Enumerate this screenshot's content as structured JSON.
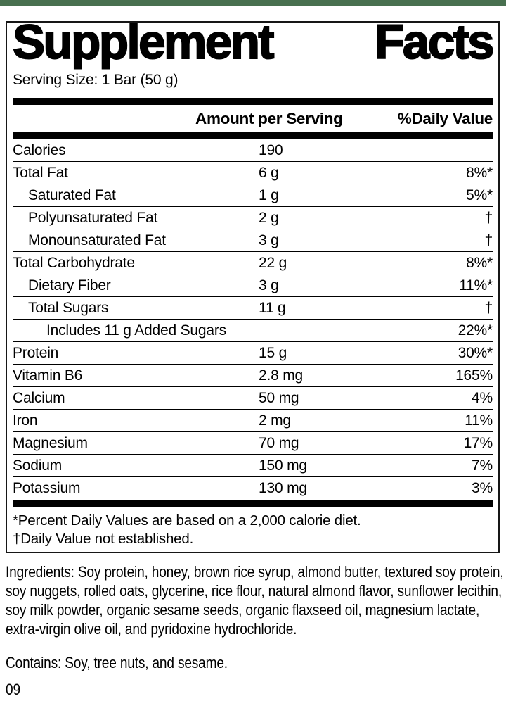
{
  "colors": {
    "accent_green": "#48704f",
    "text": "#000000"
  },
  "title": "Supplement Facts",
  "title_words": [
    "Supplement",
    "Facts"
  ],
  "serving_size": "Serving Size: 1 Bar (50 g)",
  "table": {
    "headers": {
      "amount": "Amount per Serving",
      "daily_value": "%Daily Value"
    },
    "rows": [
      {
        "label": "Calories",
        "amount": "190",
        "dv": "",
        "indent": 0
      },
      {
        "label": "Total Fat",
        "amount": "6 g",
        "dv": "8%*",
        "indent": 0
      },
      {
        "label": "Saturated Fat",
        "amount": "1 g",
        "dv": "5%*",
        "indent": 1
      },
      {
        "label": "Polyunsaturated Fat",
        "amount": "2 g",
        "dv": "†",
        "indent": 1
      },
      {
        "label": "Monounsaturated Fat",
        "amount": "3 g",
        "dv": "†",
        "indent": 1
      },
      {
        "label": "Total Carbohydrate",
        "amount": "22 g",
        "dv": "8%*",
        "indent": 0
      },
      {
        "label": "Dietary Fiber",
        "amount": "3 g",
        "dv": "11%*",
        "indent": 1
      },
      {
        "label": "Total Sugars",
        "amount": "11 g",
        "dv": "†",
        "indent": 1
      },
      {
        "label": "Includes 11 g Added Sugars",
        "amount": "",
        "dv": "22%*",
        "indent": 2
      },
      {
        "label": "Protein",
        "amount": "15 g",
        "dv": "30%*",
        "indent": 0
      },
      {
        "label": "Vitamin B6",
        "amount": "2.8 mg",
        "dv": "165%",
        "indent": 0
      },
      {
        "label": "Calcium",
        "amount": "50 mg",
        "dv": "4%",
        "indent": 0
      },
      {
        "label": "Iron",
        "amount": "2 mg",
        "dv": "11%",
        "indent": 0
      },
      {
        "label": "Magnesium",
        "amount": "70 mg",
        "dv": "17%",
        "indent": 0
      },
      {
        "label": "Sodium",
        "amount": "150 mg",
        "dv": "7%",
        "indent": 0
      },
      {
        "label": "Potassium",
        "amount": "130 mg",
        "dv": "3%",
        "indent": 0
      }
    ]
  },
  "footnotes": [
    "*Percent Daily Values are based on a 2,000 calorie diet.",
    "†Daily Value not established."
  ],
  "ingredients": "Ingredients: Soy protein, honey, brown rice syrup, almond butter, textured soy protein, soy nuggets, rolled oats, glycerine, rice flour, natural almond flavor, sunflower lecithin, soy milk powder, organic sesame seeds, organic flaxseed oil, magnesium lactate, extra-virgin olive oil, and pyridoxine hydrochloride.",
  "contains": "Contains: Soy, tree nuts, and sesame.",
  "code": "09"
}
